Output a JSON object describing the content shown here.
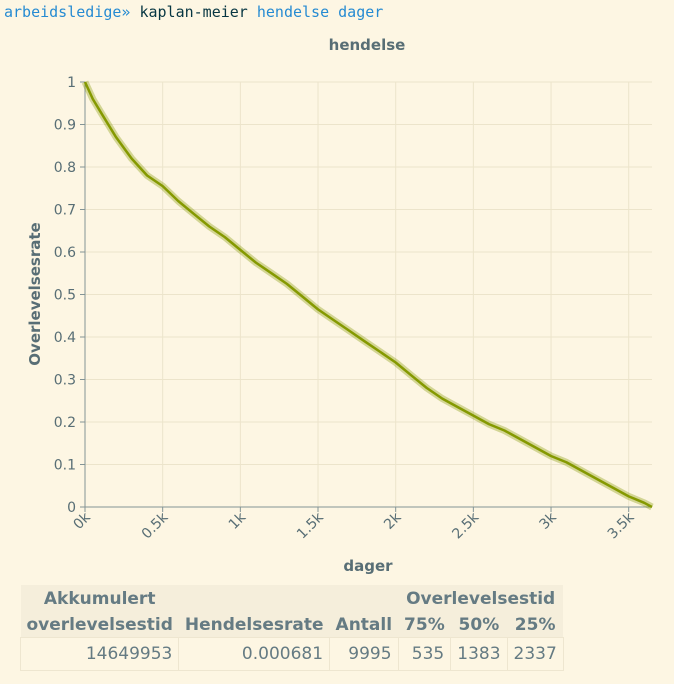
{
  "command": {
    "prefix": "arbeidsledige»",
    "verb": "kaplan-meier",
    "event": "hendelse",
    "time": "dager"
  },
  "chart_data": {
    "type": "line",
    "title": "hendelse",
    "xlabel": "dager",
    "ylabel": "Overlevelsesrate",
    "xlim": [
      0,
      3650
    ],
    "ylim": [
      0,
      1
    ],
    "x_ticks": [
      0,
      500,
      1000,
      1500,
      2000,
      2500,
      3000,
      3500
    ],
    "x_tick_labels": [
      "0k",
      "0.5k",
      "1k",
      "1.5k",
      "2k",
      "2.5k",
      "3k",
      "3.5k"
    ],
    "y_ticks": [
      0,
      0.1,
      0.2,
      0.3,
      0.4,
      0.5,
      0.6,
      0.7,
      0.8,
      0.9,
      1
    ],
    "y_tick_labels": [
      "0",
      "0.1",
      "0.2",
      "0.3",
      "0.4",
      "0.5",
      "0.6",
      "0.7",
      "0.8",
      "0.9",
      "1"
    ],
    "grid": true,
    "color": "#859900",
    "series": [
      {
        "x": [
          0,
          50,
          100,
          200,
          300,
          400,
          500,
          600,
          700,
          800,
          900,
          1000,
          1100,
          1200,
          1300,
          1400,
          1500,
          1600,
          1700,
          1800,
          1900,
          2000,
          2100,
          2200,
          2300,
          2400,
          2500,
          2600,
          2700,
          2800,
          2900,
          3000,
          3100,
          3200,
          3300,
          3400,
          3500,
          3600,
          3650
        ],
        "y": [
          1.0,
          0.96,
          0.93,
          0.87,
          0.82,
          0.78,
          0.755,
          0.72,
          0.69,
          0.66,
          0.635,
          0.605,
          0.575,
          0.55,
          0.525,
          0.495,
          0.465,
          0.44,
          0.415,
          0.39,
          0.365,
          0.34,
          0.31,
          0.28,
          0.255,
          0.235,
          0.215,
          0.195,
          0.18,
          0.16,
          0.14,
          0.12,
          0.105,
          0.085,
          0.065,
          0.045,
          0.025,
          0.01,
          0.0
        ]
      }
    ]
  },
  "table": {
    "group_header": "Overlevelsestid",
    "col1_line1": "Akkumulert",
    "col1_line2": "overlevelsestid",
    "col2": "Hendelsesrate",
    "col3": "Antall",
    "col4": "75%",
    "col5": "50%",
    "col6": "25%",
    "row": {
      "akkumulert": "14649953",
      "hendelsesrate": "0.000681",
      "antall": "9995",
      "p75": "535",
      "p50": "1383",
      "p25": "2337"
    }
  }
}
